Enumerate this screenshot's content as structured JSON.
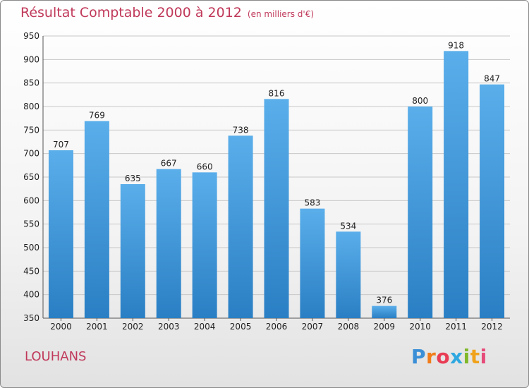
{
  "title": "Résultat Comptable 2000 à 2012",
  "subtitle": "(en milliers d'€)",
  "city": "LOUHANS",
  "logo": [
    "P",
    "r",
    "o",
    "x",
    "i",
    "t",
    "i"
  ],
  "colors": {
    "bar": "#3d97dd",
    "title": "#c0395a"
  },
  "chart_data": {
    "type": "bar",
    "title": "Résultat Comptable 2000 à 2012",
    "subtitle": "(en milliers d'€)",
    "categories": [
      "2000",
      "2001",
      "2002",
      "2003",
      "2004",
      "2005",
      "2006",
      "2007",
      "2008",
      "2009",
      "2010",
      "2011",
      "2012"
    ],
    "values": [
      707,
      769,
      635,
      667,
      660,
      738,
      816,
      583,
      534,
      376,
      800,
      918,
      847
    ],
    "ylim": [
      350,
      950
    ],
    "yticks": [
      350,
      400,
      450,
      500,
      550,
      600,
      650,
      700,
      750,
      800,
      850,
      900,
      950
    ],
    "grid": true
  }
}
